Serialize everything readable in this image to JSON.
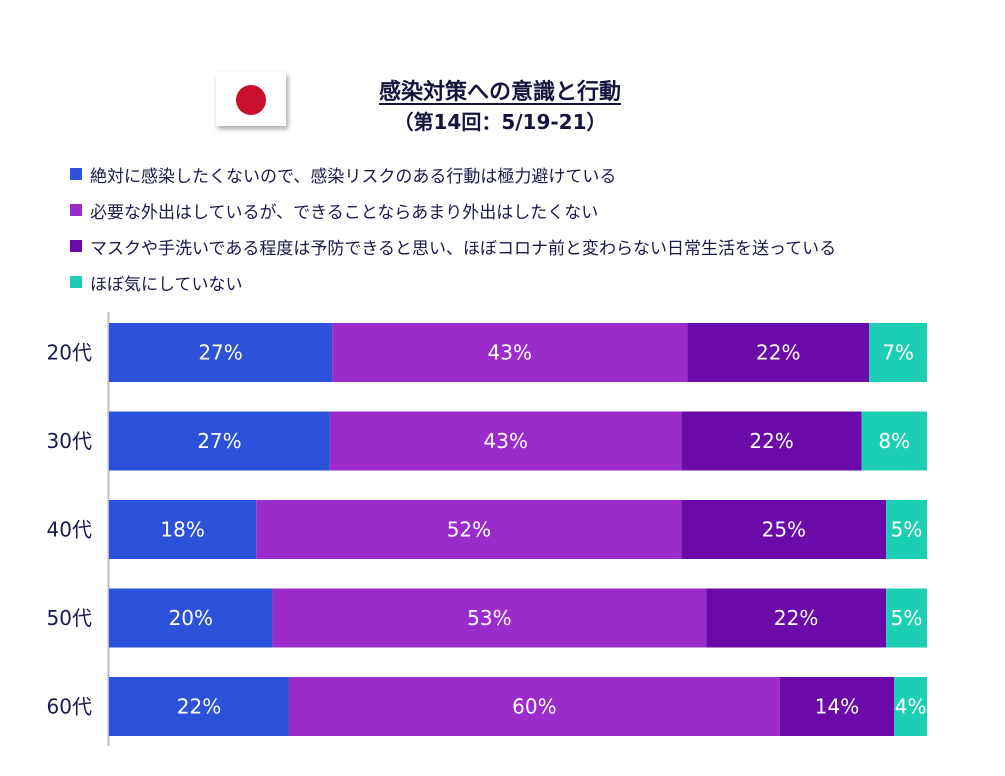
{
  "title": "感染対策への意識と行動",
  "subtitle": "（第14回：5/19-21）",
  "flag_icon": "japan-flag-icon",
  "colors": {
    "series": [
      "#2b52d8",
      "#9b2ccb",
      "#6a0aa8",
      "#1ccfb4"
    ]
  },
  "chart_data": {
    "type": "bar",
    "orientation": "horizontal",
    "stacked": true,
    "categories": [
      "20代",
      "30代",
      "40代",
      "50代",
      "60代"
    ],
    "series": [
      {
        "name": "絶対に感染したくないので、感染リスクのある行動は極力避けている",
        "values": [
          27,
          27,
          18,
          20,
          22
        ]
      },
      {
        "name": "必要な外出はしているが、できることならあまり外出はしたくない",
        "values": [
          43,
          43,
          52,
          53,
          60
        ]
      },
      {
        "name": "マスクや手洗いである程度は予防できると思い、ほぼコロナ前と変わらない日常生活を送っている",
        "values": [
          22,
          22,
          25,
          22,
          14
        ]
      },
      {
        "name": "ほぼ気にしていない",
        "values": [
          7,
          8,
          5,
          5,
          4
        ]
      }
    ],
    "value_suffix": "%",
    "legend_position": "top",
    "grid": false
  }
}
